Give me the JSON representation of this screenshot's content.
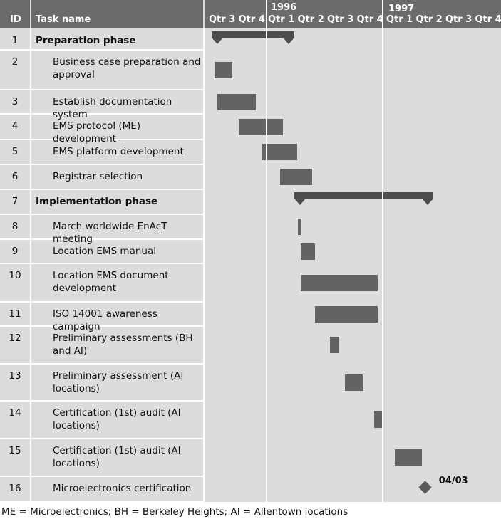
{
  "headers": {
    "id": "ID",
    "task": "Task name"
  },
  "years": [
    "1996",
    "1997"
  ],
  "quarters": [
    "Qtr 3",
    "Qtr 4",
    "Qtr 1",
    "Qtr 2",
    "Qtr 3",
    "Qtr 4",
    "Qtr 1",
    "Qtr 2",
    "Qtr 3",
    "Qtr 4"
  ],
  "tasks": [
    {
      "id": "1",
      "name": "Preparation phase",
      "level": 0,
      "kind": "summary",
      "start": 0.1,
      "end": 2.9
    },
    {
      "id": "2",
      "name": "Business case preparation and approval",
      "level": 1,
      "kind": "task",
      "start": 0.2,
      "end": 0.8
    },
    {
      "id": "3",
      "name": "Establish documentation system",
      "level": 1,
      "kind": "task",
      "start": 0.3,
      "end": 1.6
    },
    {
      "id": "4",
      "name": "EMS protocol (ME) development",
      "level": 1,
      "kind": "task",
      "start": 1.0,
      "end": 2.5
    },
    {
      "id": "5",
      "name": "EMS platform development",
      "level": 1,
      "kind": "task",
      "start": 1.8,
      "end": 3.0
    },
    {
      "id": "6",
      "name": "Registrar selection",
      "level": 1,
      "kind": "task",
      "start": 2.4,
      "end": 3.5
    },
    {
      "id": "7",
      "name": "Implementation phase",
      "level": 0,
      "kind": "summary",
      "start": 2.9,
      "end": 7.6
    },
    {
      "id": "8",
      "name": "March worldwide EnAcT meeting",
      "level": 1,
      "kind": "task",
      "start": 3.0,
      "end": 3.1
    },
    {
      "id": "9",
      "name": "Location EMS manual",
      "level": 1,
      "kind": "task",
      "start": 3.1,
      "end": 3.6
    },
    {
      "id": "10",
      "name": "Location EMS document development",
      "level": 1,
      "kind": "task",
      "start": 3.1,
      "end": 5.7
    },
    {
      "id": "11",
      "name": "ISO 14001 awareness campaign",
      "level": 1,
      "kind": "task",
      "start": 3.6,
      "end": 5.7
    },
    {
      "id": "12",
      "name": "Preliminary assessments (BH and AI)",
      "level": 1,
      "kind": "task",
      "start": 4.1,
      "end": 4.4
    },
    {
      "id": "13",
      "name": "Preliminary assessment (AI locations)",
      "level": 1,
      "kind": "task",
      "start": 4.6,
      "end": 5.2
    },
    {
      "id": "14",
      "name": "Certification (1st) audit (AI locations)",
      "level": 1,
      "kind": "task",
      "start": 5.6,
      "end": 5.9
    },
    {
      "id": "15",
      "name": "Certification (1st) audit (AI locations)",
      "level": 1,
      "kind": "task",
      "start": 6.3,
      "end": 7.2
    },
    {
      "id": "16",
      "name": "Microelectronics certification",
      "level": 1,
      "kind": "milestone",
      "start": 7.2,
      "end": 7.2,
      "label": "04/03"
    }
  ],
  "footnote": "ME = Microelectronics; BH = Berkeley Heights; AI = Allentown locations"
}
